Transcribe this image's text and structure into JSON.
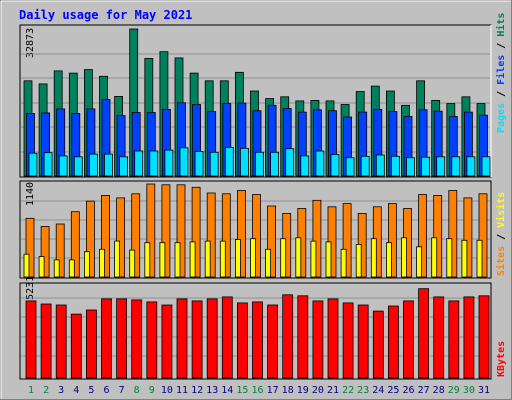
{
  "title": "Daily usage for May 2021",
  "colors": {
    "background": "#c0c0c0",
    "hits": "#00805c",
    "files": "#0040ff",
    "pages": "#00e0ff",
    "visits": "#ffff00",
    "sites": "#ff8000",
    "kbytes": "#ff0000",
    "weekday_label": "#000080",
    "weekend_label": "#008040"
  },
  "chart_data": [
    {
      "type": "bar",
      "panel": "hits-files-pages",
      "y_max_label": "32873",
      "ylim": [
        0,
        32873
      ],
      "categories": [
        "1",
        "2",
        "3",
        "4",
        "5",
        "6",
        "7",
        "8",
        "9",
        "10",
        "11",
        "12",
        "13",
        "14",
        "15",
        "16",
        "17",
        "18",
        "19",
        "20",
        "21",
        "22",
        "23",
        "24",
        "25",
        "26",
        "27",
        "28",
        "29",
        "30",
        "31"
      ],
      "weekend_days": [
        "1",
        "2",
        "8",
        "9",
        "15",
        "16",
        "22",
        "23",
        "29",
        "30"
      ],
      "series": [
        {
          "name": "Hits",
          "values": [
            21300,
            20600,
            23500,
            23000,
            23800,
            22300,
            17800,
            32873,
            26300,
            27800,
            26400,
            23000,
            21300,
            21300,
            23200,
            19000,
            17300,
            17700,
            16800,
            16900,
            16800,
            16000,
            18900,
            20100,
            19000,
            15800,
            21300,
            16900,
            16200,
            17700,
            16200
          ]
        },
        {
          "name": "Files",
          "values": [
            14000,
            14100,
            15000,
            14000,
            15000,
            17100,
            13500,
            14200,
            14200,
            14900,
            16400,
            16000,
            14400,
            16200,
            16300,
            14600,
            15800,
            15100,
            14300,
            14800,
            14600,
            13200,
            14300,
            14900,
            14400,
            13300,
            14800,
            14500,
            13300,
            14300,
            13600
          ]
        },
        {
          "name": "Pages",
          "values": [
            5100,
            5200,
            4500,
            4300,
            4900,
            4900,
            4300,
            5600,
            5600,
            5800,
            6300,
            5500,
            5300,
            6400,
            6200,
            5300,
            5300,
            6100,
            4500,
            5600,
            4800,
            4100,
            4400,
            4700,
            4400,
            4100,
            4200,
            4300,
            4300,
            4300,
            4300
          ]
        }
      ]
    },
    {
      "type": "bar",
      "panel": "visits-sites",
      "y_max_label": "1140",
      "ylim": [
        0,
        1140
      ],
      "categories": [
        "1",
        "2",
        "3",
        "4",
        "5",
        "6",
        "7",
        "8",
        "9",
        "10",
        "11",
        "12",
        "13",
        "14",
        "15",
        "16",
        "17",
        "18",
        "19",
        "20",
        "21",
        "22",
        "23",
        "24",
        "25",
        "26",
        "27",
        "28",
        "29",
        "30",
        "31"
      ],
      "series": [
        {
          "name": "Sites",
          "values": [
            720,
            620,
            650,
            800,
            930,
            1000,
            970,
            1020,
            1140,
            1130,
            1130,
            1100,
            1030,
            1020,
            1060,
            1010,
            870,
            780,
            840,
            940,
            860,
            900,
            780,
            860,
            900,
            840,
            1010,
            1000,
            1060,
            970,
            1020
          ]
        },
        {
          "name": "Visits",
          "values": [
            280,
            250,
            210,
            210,
            310,
            340,
            440,
            330,
            420,
            420,
            420,
            430,
            440,
            440,
            460,
            470,
            340,
            470,
            480,
            440,
            430,
            340,
            400,
            470,
            420,
            480,
            370,
            480,
            470,
            450,
            450
          ]
        }
      ]
    },
    {
      "type": "bar",
      "panel": "kbytes",
      "y_max_label": "4535231",
      "ylim": [
        0,
        4535231
      ],
      "categories": [
        "1",
        "2",
        "3",
        "4",
        "5",
        "6",
        "7",
        "8",
        "9",
        "10",
        "11",
        "12",
        "13",
        "14",
        "15",
        "16",
        "17",
        "18",
        "19",
        "20",
        "21",
        "22",
        "23",
        "24",
        "25",
        "26",
        "27",
        "28",
        "29",
        "30",
        "31"
      ],
      "series": [
        {
          "name": "KBytes",
          "values": [
            3800000,
            3650000,
            3600000,
            3150000,
            3350000,
            3900000,
            3900000,
            3850000,
            3750000,
            3600000,
            3900000,
            3800000,
            3900000,
            4000000,
            3700000,
            3750000,
            3600000,
            4100000,
            4050000,
            3800000,
            3900000,
            3700000,
            3600000,
            3300000,
            3550000,
            3800000,
            4400000,
            4000000,
            3800000,
            4000000,
            4050000
          ]
        }
      ]
    }
  ],
  "side_labels": {
    "top": [
      "Pages",
      "Files",
      "Hits"
    ],
    "mid": [
      "Sites",
      "Visits"
    ],
    "bottom": [
      "KBytes"
    ],
    "separator": " / "
  }
}
